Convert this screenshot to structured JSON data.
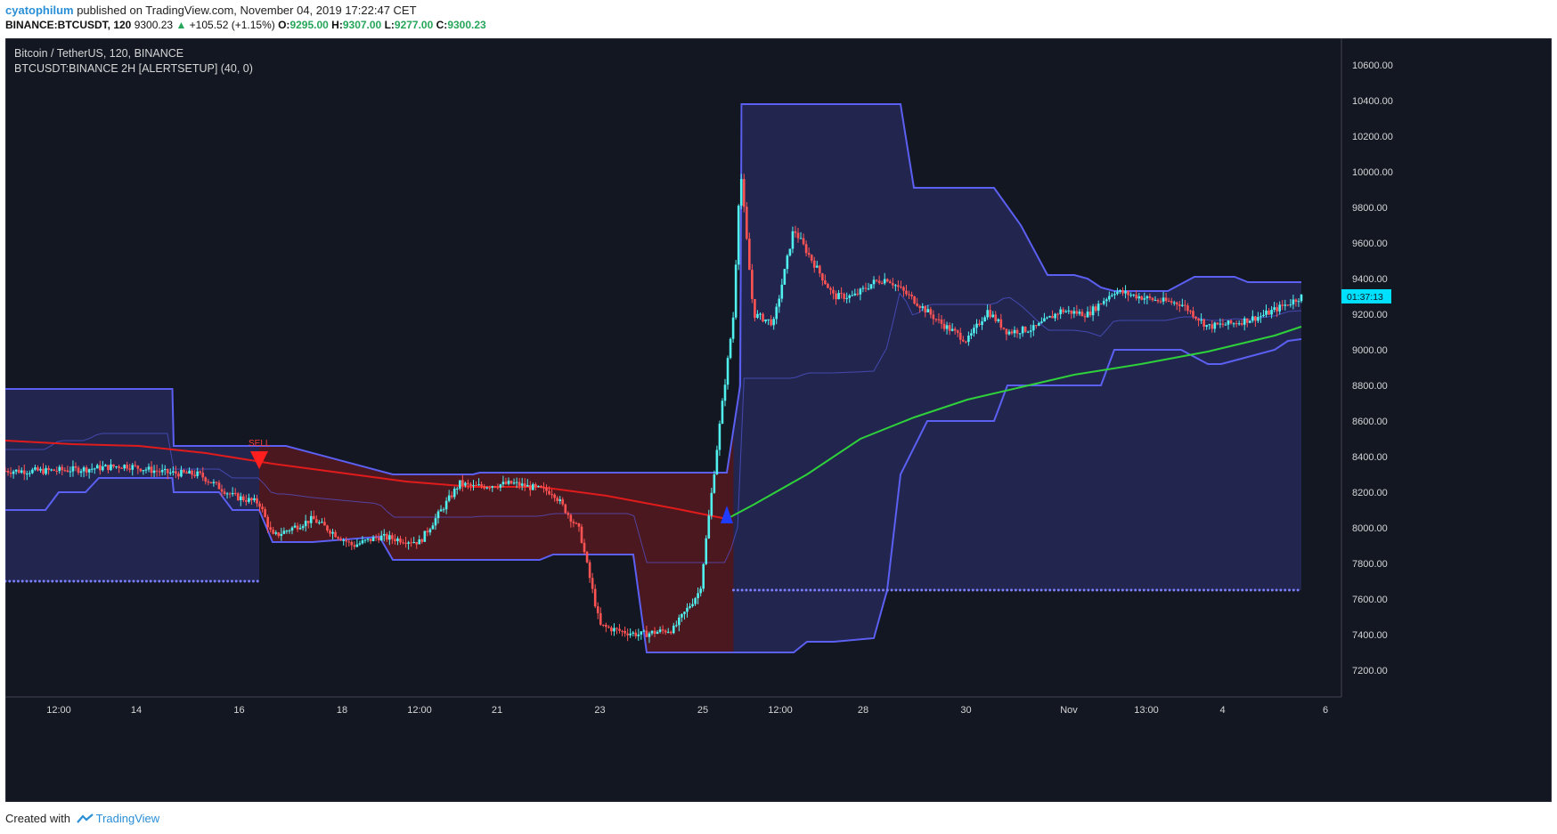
{
  "header": {
    "author": "cyatophilum",
    "published": "published on TradingView.com, November 04, 2019 17:22:47 CET",
    "symbol": "BINANCE:BTCUSDT, 120",
    "last": "9300.23",
    "change": "+105.52 (+1.15%)",
    "o_label": "O:",
    "o": "9295.00",
    "h_label": "H:",
    "h": "9307.00",
    "l_label": "L:",
    "l": "9277.00",
    "c_label": "C:",
    "c": "9300.23"
  },
  "legend": {
    "title": "Bitcoin / TetherUS, 120, BINANCE",
    "indicator": "BTCUSDT:BINANCE 2H [ALERTSETUP] (40, 0)"
  },
  "footer": {
    "created": "Created with",
    "brand": "TradingView"
  },
  "colors": {
    "background": "#131722",
    "up": "#4ff0ee",
    "down": "#ff5353",
    "channel_blue": "#5b5ff2",
    "channel_red": "#e01b1b",
    "ma_green": "#2ed13a",
    "ma_red": "#e01b1b"
  },
  "chart_data": {
    "type": "line",
    "title": "Bitcoin / TetherUS, 120, BINANCE",
    "ylim": [
      7050,
      10750
    ],
    "y_ticks": [
      "10600.00",
      "10400.00",
      "10200.00",
      "10000.00",
      "9800.00",
      "9600.00",
      "9400.00",
      "9200.00",
      "9000.00",
      "8800.00",
      "8600.00",
      "8400.00",
      "8200.00",
      "8000.00",
      "7800.00",
      "7600.00",
      "7400.00",
      "7200.00"
    ],
    "x_ticks": [
      "12:00",
      "14",
      "16",
      "18",
      "12:00",
      "21",
      "23",
      "25",
      "12:00",
      "28",
      "30",
      "Nov",
      "13:00",
      "4",
      "6"
    ],
    "price_label": "01:37:13",
    "current_price": 9300.23,
    "signals": [
      {
        "label": "SELL",
        "x": 0.19,
        "price": 8400
      },
      {
        "label": "",
        "x": 0.54,
        "price": 8050
      }
    ],
    "series": [
      {
        "kind": "price",
        "x": [
          0.0,
          0.03,
          0.06,
          0.09,
          0.12,
          0.145,
          0.17,
          0.19,
          0.2,
          0.23,
          0.26,
          0.28,
          0.31,
          0.34,
          0.35,
          0.38,
          0.41,
          0.43,
          0.445,
          0.46,
          0.475,
          0.5,
          0.52,
          0.535,
          0.545,
          0.55,
          0.555,
          0.56,
          0.575,
          0.59,
          0.6,
          0.62,
          0.635,
          0.65,
          0.66,
          0.68,
          0.7,
          0.72,
          0.735,
          0.75,
          0.77,
          0.79,
          0.81,
          0.83,
          0.86,
          0.88,
          0.9,
          0.92,
          0.94,
          0.96,
          0.97
        ],
        "y": [
          8320,
          8320,
          8330,
          8350,
          8310,
          8300,
          8180,
          8140,
          7950,
          8050,
          7900,
          7950,
          7920,
          8250,
          8230,
          8250,
          8200,
          7980,
          7450,
          7420,
          7400,
          7430,
          7650,
          8600,
          9200,
          10030,
          9600,
          9200,
          9150,
          9680,
          9550,
          9300,
          9300,
          9380,
          9400,
          9280,
          9150,
          9050,
          9220,
          9100,
          9120,
          9220,
          9200,
          9330,
          9280,
          9260,
          9130,
          9150,
          9190,
          9260,
          9300
        ]
      },
      {
        "name": "",
        "kind": "upper_band",
        "x": [
          0.0,
          0.125,
          0.126,
          0.19,
          0.191,
          0.21,
          0.29,
          0.35,
          0.355,
          0.51,
          0.54,
          0.55,
          0.551,
          0.67,
          0.68,
          0.74,
          0.76,
          0.78,
          0.8,
          0.81,
          0.82,
          0.83,
          0.86,
          0.87,
          0.89,
          0.92,
          0.93,
          0.97
        ],
        "y": [
          8780,
          8780,
          8460,
          8460,
          8460,
          8460,
          8300,
          8300,
          8310,
          8310,
          8310,
          8800,
          10380,
          10380,
          9910,
          9910,
          9700,
          9420,
          9420,
          9400,
          9350,
          9330,
          9330,
          9330,
          9410,
          9410,
          9380,
          9380
        ]
      },
      {
        "name": "",
        "kind": "lower_band",
        "x": [
          0.0,
          0.03,
          0.04,
          0.06,
          0.07,
          0.125,
          0.126,
          0.16,
          0.17,
          0.19,
          0.2,
          0.23,
          0.28,
          0.29,
          0.35,
          0.36,
          0.4,
          0.41,
          0.47,
          0.48,
          0.52,
          0.55,
          0.59,
          0.6,
          0.62,
          0.65,
          0.66,
          0.67,
          0.69,
          0.7,
          0.71,
          0.72,
          0.74,
          0.75,
          0.76,
          0.82,
          0.83,
          0.85,
          0.86,
          0.88,
          0.9,
          0.91,
          0.95,
          0.96,
          0.97
        ],
        "y": [
          8100,
          8100,
          8200,
          8200,
          8280,
          8280,
          8200,
          8200,
          8100,
          8100,
          7920,
          7920,
          7950,
          7820,
          7820,
          7820,
          7820,
          7850,
          7850,
          7300,
          7300,
          7300,
          7300,
          7360,
          7360,
          7380,
          7650,
          8300,
          8600,
          8600,
          8600,
          8600,
          8600,
          8800,
          8800,
          8800,
          9000,
          9000,
          9000,
          9000,
          8920,
          8920,
          9000,
          9050,
          9060
        ]
      },
      {
        "name": "",
        "kind": "moving_average",
        "x": [
          0.0,
          0.05,
          0.1,
          0.15,
          0.2,
          0.25,
          0.3,
          0.35,
          0.4,
          0.45,
          0.5,
          0.54,
          0.56,
          0.6,
          0.64,
          0.68,
          0.72,
          0.76,
          0.8,
          0.85,
          0.9,
          0.95,
          0.97
        ],
        "y": [
          8490,
          8470,
          8460,
          8420,
          8360,
          8310,
          8260,
          8230,
          8230,
          8180,
          8110,
          8050,
          8130,
          8300,
          8500,
          8620,
          8720,
          8790,
          8860,
          8920,
          8990,
          9080,
          9130
        ]
      },
      {
        "name": "",
        "kind": "stop_level",
        "x": [
          0.0,
          0.19,
          0.545,
          0.97
        ],
        "y": [
          7700,
          7700,
          7650,
          7650
        ]
      }
    ]
  }
}
